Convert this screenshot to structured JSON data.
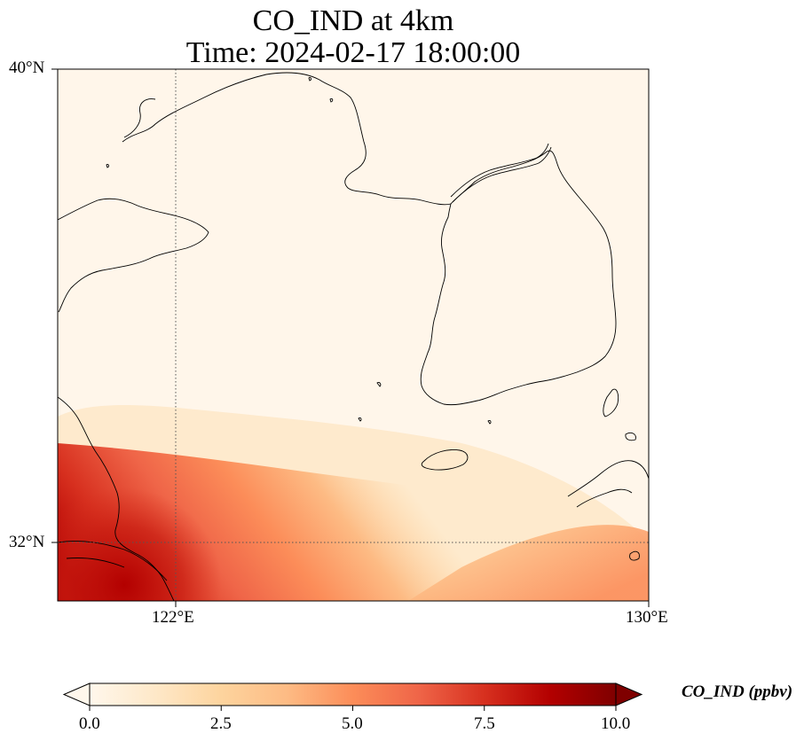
{
  "title": {
    "line1": "CO_IND at 4km",
    "line2": "Time: 2024-02-17 18:00:00"
  },
  "axes": {
    "lat_labels": [
      "40°N",
      "32°N"
    ],
    "lon_labels": [
      "122°E",
      "130°E"
    ],
    "extent": {
      "lon": [
        120,
        130
      ],
      "lat": [
        31,
        40
      ]
    },
    "gridlines": {
      "lon": 122,
      "lat": 32,
      "style": "dotted"
    }
  },
  "colorbar": {
    "label": "CO_IND (ppbv)",
    "ticks": [
      "0.0",
      "2.5",
      "5.0",
      "7.5",
      "10.0"
    ],
    "range": [
      0,
      10
    ],
    "extend": "both",
    "colormap": "OrRd",
    "colors": [
      "#fff7ec",
      "#fee8c8",
      "#fdd49e",
      "#fdbb84",
      "#fc8d59",
      "#ef6548",
      "#d7301f",
      "#b30000",
      "#7f0000"
    ]
  },
  "map": {
    "variable": "CO_IND",
    "units": "ppbv",
    "region": "Yellow Sea / Korean Peninsula",
    "max_region": "southwest corner (Yangtze River delta)",
    "coastline_color": "#000000"
  }
}
